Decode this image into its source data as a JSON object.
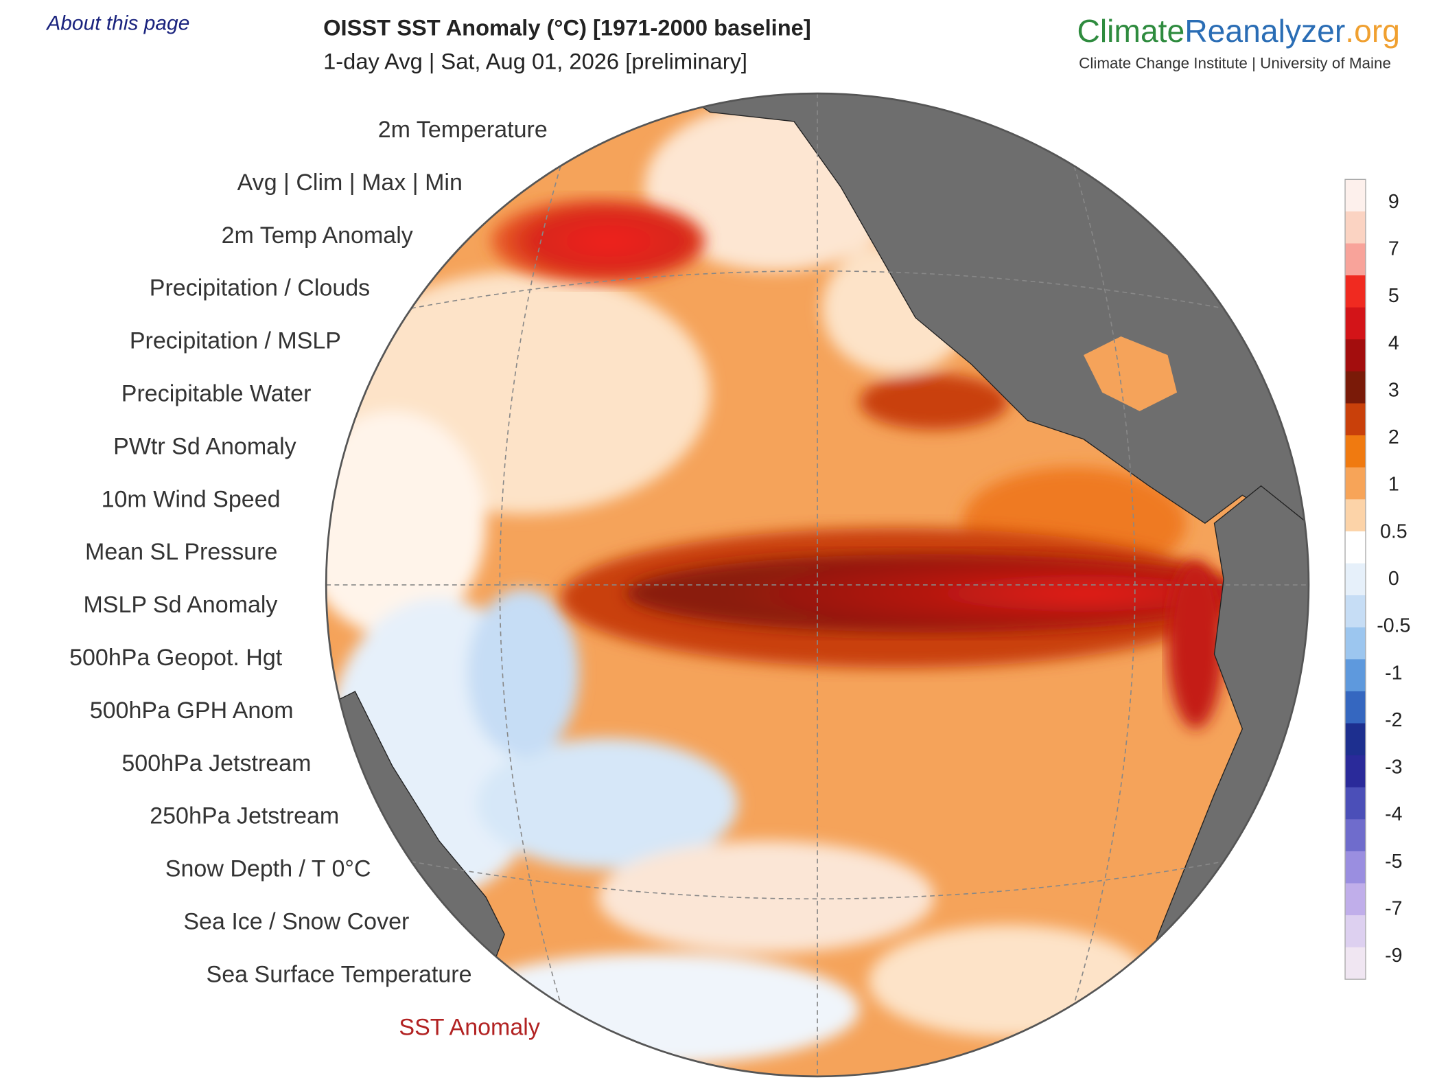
{
  "header": {
    "about_link": "About this page",
    "title": "OISST SST Anomaly (°C) [1971-2000 baseline]",
    "subtitle": "1-day Avg | Sat, Aug 01, 2026 [preliminary]",
    "logo": {
      "part1": "Climate",
      "part2": "Reanalyzer",
      "part3": ".org",
      "tagline": "Climate Change Institute | University of Maine"
    }
  },
  "menu": {
    "items": [
      "2m Temperature",
      "Avg  |  Clim  |  Max  |  Min",
      "2m Temp Anomaly",
      "Precipitation / Clouds",
      "Precipitation / MSLP",
      "Precipitable Water",
      "PWtr Sd Anomaly",
      "10m Wind Speed",
      "Mean SL Pressure",
      "MSLP Sd Anomaly",
      "500hPa Geopot. Hgt",
      "500hPa GPH Anom",
      "500hPa Jetstream",
      "250hPa Jetstream",
      "Snow Depth / T 0°C",
      "Sea Ice / Snow Cover",
      "Sea Surface Temperature",
      "SST Anomaly"
    ]
  },
  "colorbar": {
    "labels": [
      "9",
      "7",
      "5",
      "4",
      "3",
      "2",
      "1",
      "0.5",
      "0",
      "-0.5",
      "-1",
      "-2",
      "-3",
      "-4",
      "-5",
      "-7",
      "-9"
    ]
  }
}
